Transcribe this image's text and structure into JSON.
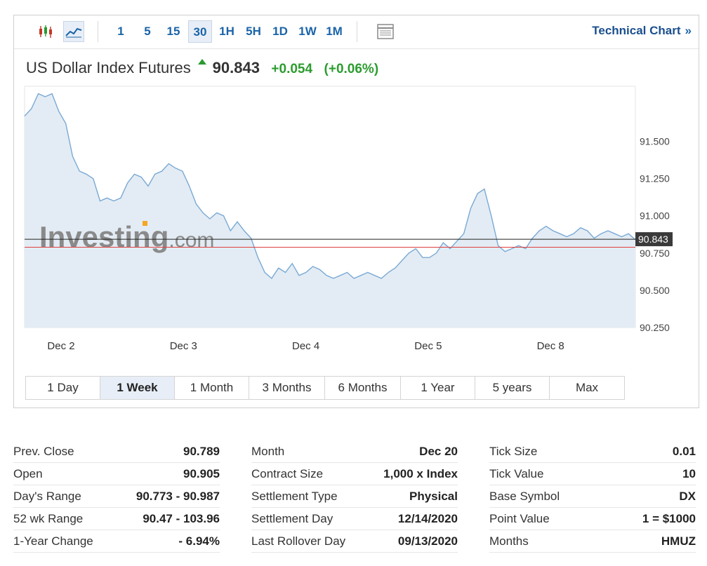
{
  "toolbar": {
    "candle_icon": "candlestick-icon",
    "line_icon": "line-chart-icon",
    "intervals": [
      "1",
      "5",
      "15",
      "30",
      "1H",
      "5H",
      "1D",
      "1W",
      "1M"
    ],
    "active_interval": "30",
    "table_icon": "data-table-icon",
    "technical_chart_label": "Technical Chart",
    "technical_chart_chevron": "»"
  },
  "header": {
    "title": "US Dollar Index Futures",
    "last": "90.843",
    "change": "+0.054",
    "change_pct": "(+0.06%)"
  },
  "colors": {
    "accent": "#1a64a8",
    "positive": "#2c9c2f",
    "line": "#7aa9d4",
    "area": "#e3ecf4",
    "current_price_line": "#222222",
    "prev_close_line": "#e04040"
  },
  "watermark": {
    "brand": "Investing",
    "suffix": ".com"
  },
  "chart_data": {
    "type": "area",
    "title": "US Dollar Index Futures",
    "xlabel": "",
    "ylabel": "",
    "x_ticks": [
      "Dec 2",
      "Dec 3",
      "Dec 4",
      "Dec 5",
      "Dec 8"
    ],
    "y_ticks": [
      "91.500",
      "91.250",
      "91.000",
      "90.750",
      "90.500",
      "90.250"
    ],
    "ylim": [
      90.25,
      91.87
    ],
    "current_price": 90.843,
    "current_price_label": "90.843",
    "prev_close": 90.789,
    "grid": false,
    "series": [
      {
        "values": [
          91.67,
          91.72,
          91.82,
          91.8,
          91.82,
          91.7,
          91.62,
          91.4,
          91.3,
          91.28,
          91.25,
          91.1,
          91.12,
          91.1,
          91.12,
          91.22,
          91.28,
          91.26,
          91.2,
          91.28,
          91.3,
          91.35,
          91.32,
          91.3,
          91.2,
          91.08,
          91.02,
          90.98,
          91.02,
          91.0,
          90.9,
          90.96,
          90.9,
          90.85,
          90.72,
          90.62,
          90.58,
          90.65,
          90.62,
          90.68,
          90.6,
          90.62,
          90.66,
          90.64,
          90.6,
          90.58,
          90.6,
          90.62,
          90.58,
          90.6,
          90.62,
          90.6,
          90.58,
          90.62,
          90.65,
          90.7,
          90.75,
          90.78,
          90.72,
          90.72,
          90.75,
          90.82,
          90.78,
          90.83,
          90.88,
          91.05,
          91.15,
          91.18,
          91.0,
          90.8,
          90.76,
          90.78,
          90.8,
          90.78,
          90.85,
          90.9,
          90.93,
          90.9,
          90.88,
          90.86,
          90.88,
          90.92,
          90.9,
          90.85,
          90.88,
          90.9,
          90.88,
          90.86,
          90.88,
          90.84
        ]
      }
    ]
  },
  "ranges": {
    "items": [
      "1 Day",
      "1 Week",
      "1 Month",
      "3 Months",
      "6 Months",
      "1 Year",
      "5 years",
      "Max"
    ],
    "active": "1 Week"
  },
  "stats": {
    "col1": [
      {
        "label": "Prev. Close",
        "value": "90.789"
      },
      {
        "label": "Open",
        "value": "90.905"
      },
      {
        "label": "Day's Range",
        "value": "90.773 - 90.987"
      },
      {
        "label": "52 wk Range",
        "value": "90.47 - 103.96"
      },
      {
        "label": "1-Year Change",
        "value": "- 6.94%"
      }
    ],
    "col2": [
      {
        "label": "Month",
        "value": "Dec 20"
      },
      {
        "label": "Contract Size",
        "value": "1,000 x Index"
      },
      {
        "label": "Settlement Type",
        "value": "Physical"
      },
      {
        "label": "Settlement Day",
        "value": "12/14/2020"
      },
      {
        "label": "Last Rollover Day",
        "value": "09/13/2020"
      }
    ],
    "col3": [
      {
        "label": "Tick Size",
        "value": "0.01"
      },
      {
        "label": "Tick Value",
        "value": "10"
      },
      {
        "label": "Base Symbol",
        "value": "DX"
      },
      {
        "label": "Point Value",
        "value": "1 = $1000"
      },
      {
        "label": "Months",
        "value": "HMUZ"
      }
    ]
  }
}
